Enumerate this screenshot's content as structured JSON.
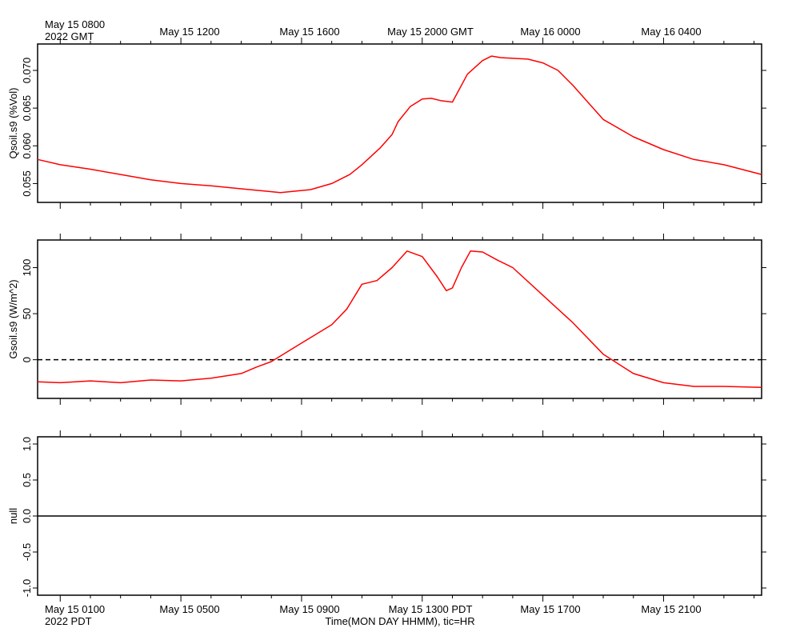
{
  "top_axis": {
    "start_label": "May 15 0800",
    "start_year": "2022 GMT",
    "tick_labels": [
      "May 15 1200",
      "May 15 1600",
      "May 15 2000 GMT",
      "May 16 0000",
      "May 16 0400"
    ]
  },
  "bottom_axis": {
    "start_label": "May 15 0100",
    "start_year": "2022 PDT",
    "tick_labels": [
      "May 15 0500",
      "May 15 0900",
      "May 15 1300 PDT",
      "May 15 1700",
      "May 15 2100"
    ],
    "title": "Time(MON DAY HHMM), tic=HR"
  },
  "colors": {
    "series": "#ff0000",
    "axis": "#000000",
    "zero_line": "#000000"
  },
  "chart_data": [
    {
      "type": "line",
      "ylabel": "Qsoil.s9 (%Vol)",
      "ylim": [
        0.0525,
        0.0735
      ],
      "yticks": [
        "0.055",
        "0.060",
        "0.065",
        "0.070"
      ],
      "x_unit": "hours since May 15 0000 PDT",
      "xlim": [
        0.25,
        24.25
      ],
      "series": [
        {
          "name": "Qsoil.s9",
          "x": [
            0.25,
            1,
            2,
            3,
            4,
            5,
            6,
            7,
            7.8,
            8.3,
            8.8,
            9.3,
            10,
            10.6,
            11,
            11.6,
            12,
            12.2,
            12.6,
            13,
            13.3,
            13.6,
            14,
            14.5,
            15,
            15.3,
            15.6,
            16,
            16.5,
            17,
            17.5,
            18,
            19,
            20,
            21,
            22,
            23,
            24.25
          ],
          "y": [
            0.0582,
            0.0575,
            0.0569,
            0.0562,
            0.0555,
            0.055,
            0.0547,
            0.0543,
            0.054,
            0.0538,
            0.054,
            0.0542,
            0.055,
            0.0562,
            0.0575,
            0.0597,
            0.0615,
            0.0632,
            0.0652,
            0.0662,
            0.0663,
            0.066,
            0.0658,
            0.0695,
            0.0713,
            0.0719,
            0.0717,
            0.0716,
            0.0715,
            0.071,
            0.07,
            0.068,
            0.0635,
            0.0612,
            0.0595,
            0.0582,
            0.0575,
            0.0562
          ]
        }
      ]
    },
    {
      "type": "line",
      "ylabel": "Gsoil.s9 (W/m^2)",
      "ylim": [
        -42,
        130
      ],
      "yticks": [
        "0",
        "50",
        "100"
      ],
      "x_unit": "hours since May 15 0000 PDT",
      "xlim": [
        0.25,
        24.25
      ],
      "reference_line": {
        "y": 0,
        "style": "dashed"
      },
      "series": [
        {
          "name": "Gsoil.s9",
          "x": [
            0.25,
            1,
            2,
            3,
            4,
            5,
            6,
            7,
            7.5,
            8,
            8.5,
            9,
            9.5,
            10,
            10.5,
            11,
            11.5,
            12,
            12.5,
            13,
            13.5,
            13.8,
            14,
            14.3,
            14.6,
            15,
            15.5,
            16,
            17,
            18,
            19,
            20,
            21,
            22,
            23,
            24.25
          ],
          "y": [
            -24,
            -25,
            -23,
            -25,
            -22,
            -23,
            -20,
            -15,
            -8,
            -2,
            8,
            18,
            28,
            38,
            55,
            82,
            86,
            100,
            118,
            112,
            90,
            75,
            78,
            100,
            118,
            117,
            108,
            100,
            70,
            40,
            6,
            -15,
            -25,
            -29,
            -29,
            -30
          ]
        }
      ]
    },
    {
      "type": "line",
      "ylabel": "null",
      "ylim": [
        -1.1,
        1.1
      ],
      "yticks": [
        "-1.0",
        "-0.5",
        "0.0",
        "0.5",
        "1.0"
      ],
      "x_unit": "hours since May 15 0000 PDT",
      "xlim": [
        0.25,
        24.25
      ],
      "series": [
        {
          "name": "null",
          "x": [
            0.25,
            24.25
          ],
          "y": [
            0,
            0
          ]
        }
      ]
    }
  ]
}
